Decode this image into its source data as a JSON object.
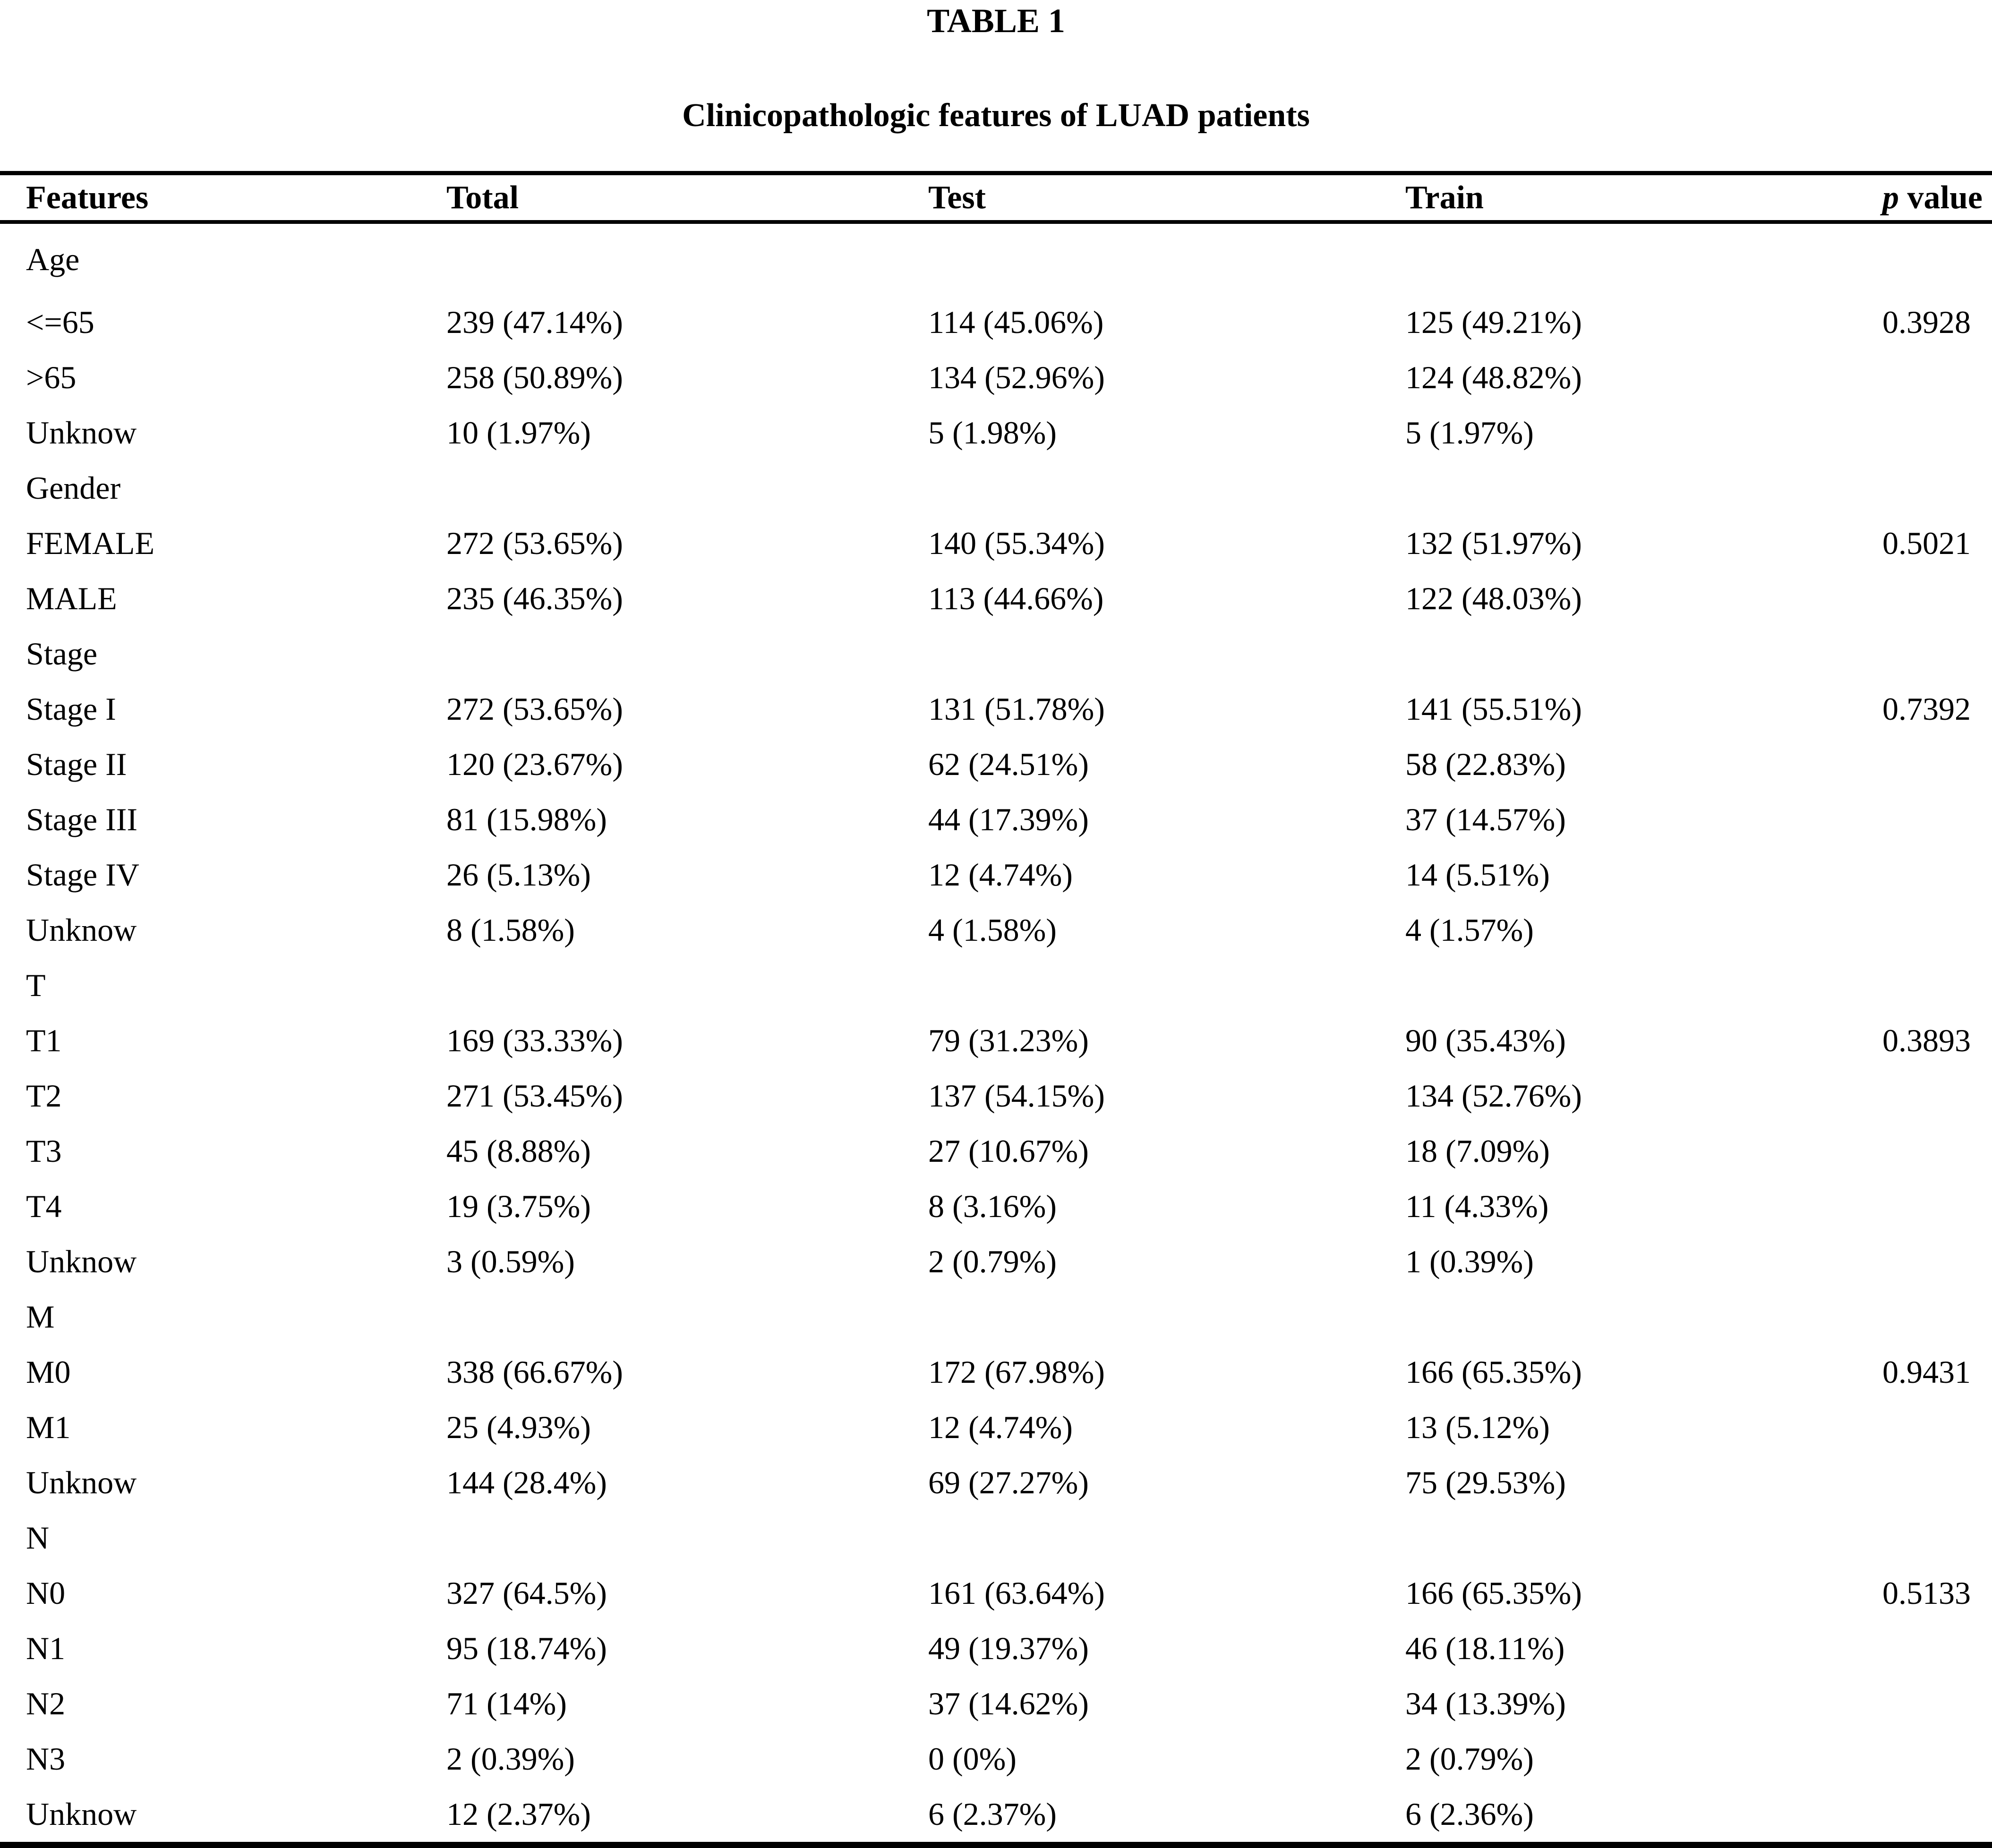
{
  "title": "TABLE 1",
  "caption": "Clinicopathologic features of LUAD patients",
  "table": {
    "headers": {
      "features": "Features",
      "total": "Total",
      "test": "Test",
      "train": "Train",
      "p_italic": "p",
      "p_rest": " value"
    },
    "rows": [
      {
        "feature": "Age",
        "total": "",
        "test": "",
        "train": "",
        "p": "",
        "group": true
      },
      {
        "feature": "<=65",
        "total": "239 (47.14%)",
        "test": "114 (45.06%)",
        "train": "125 (49.21%)",
        "p": "0.3928",
        "group": false
      },
      {
        "feature": ">65",
        "total": "258 (50.89%)",
        "test": "134 (52.96%)",
        "train": "124 (48.82%)",
        "p": "",
        "group": false
      },
      {
        "feature": "Unknow",
        "total": "10 (1.97%)",
        "test": "5 (1.98%)",
        "train": "5 (1.97%)",
        "p": "",
        "group": false
      },
      {
        "feature": "Gender",
        "total": "",
        "test": "",
        "train": "",
        "p": "",
        "group": true
      },
      {
        "feature": "FEMALE",
        "total": "272 (53.65%)",
        "test": "140 (55.34%)",
        "train": "132 (51.97%)",
        "p": "0.5021",
        "group": false
      },
      {
        "feature": "MALE",
        "total": "235 (46.35%)",
        "test": "113 (44.66%)",
        "train": "122 (48.03%)",
        "p": "",
        "group": false
      },
      {
        "feature": "Stage",
        "total": "",
        "test": "",
        "train": "",
        "p": "",
        "group": true
      },
      {
        "feature": "Stage I",
        "total": "272 (53.65%)",
        "test": "131 (51.78%)",
        "train": "141 (55.51%)",
        "p": "0.7392",
        "group": false
      },
      {
        "feature": "Stage II",
        "total": "120 (23.67%)",
        "test": "62 (24.51%)",
        "train": "58 (22.83%)",
        "p": "",
        "group": false
      },
      {
        "feature": "Stage III",
        "total": "81 (15.98%)",
        "test": "44 (17.39%)",
        "train": "37 (14.57%)",
        "p": "",
        "group": false
      },
      {
        "feature": "Stage IV",
        "total": "26 (5.13%)",
        "test": "12 (4.74%)",
        "train": "14 (5.51%)",
        "p": "",
        "group": false
      },
      {
        "feature": "Unknow",
        "total": "8 (1.58%)",
        "test": "4 (1.58%)",
        "train": "4 (1.57%)",
        "p": "",
        "group": false
      },
      {
        "feature": "T",
        "total": "",
        "test": "",
        "train": "",
        "p": "",
        "group": true
      },
      {
        "feature": "T1",
        "total": "169 (33.33%)",
        "test": "79 (31.23%)",
        "train": "90 (35.43%)",
        "p": "0.3893",
        "group": false
      },
      {
        "feature": "T2",
        "total": "271 (53.45%)",
        "test": "137 (54.15%)",
        "train": "134 (52.76%)",
        "p": "",
        "group": false
      },
      {
        "feature": "T3",
        "total": "45 (8.88%)",
        "test": "27 (10.67%)",
        "train": "18 (7.09%)",
        "p": "",
        "group": false
      },
      {
        "feature": "T4",
        "total": "19 (3.75%)",
        "test": "8 (3.16%)",
        "train": "11 (4.33%)",
        "p": "",
        "group": false
      },
      {
        "feature": "Unknow",
        "total": "3 (0.59%)",
        "test": "2 (0.79%)",
        "train": "1 (0.39%)",
        "p": "",
        "group": false
      },
      {
        "feature": "M",
        "total": "",
        "test": "",
        "train": "",
        "p": "",
        "group": true
      },
      {
        "feature": "M0",
        "total": "338 (66.67%)",
        "test": "172 (67.98%)",
        "train": "166 (65.35%)",
        "p": "0.9431",
        "group": false
      },
      {
        "feature": "M1",
        "total": "25 (4.93%)",
        "test": "12 (4.74%)",
        "train": "13 (5.12%)",
        "p": "",
        "group": false
      },
      {
        "feature": "Unknow",
        "total": "144 (28.4%)",
        "test": "69 (27.27%)",
        "train": "75 (29.53%)",
        "p": "",
        "group": false
      },
      {
        "feature": "N",
        "total": "",
        "test": "",
        "train": "",
        "p": "",
        "group": true
      },
      {
        "feature": "N0",
        "total": "327 (64.5%)",
        "test": "161 (63.64%)",
        "train": "166 (65.35%)",
        "p": "0.5133",
        "group": false
      },
      {
        "feature": "N1",
        "total": "95 (18.74%)",
        "test": "49 (19.37%)",
        "train": "46 (18.11%)",
        "p": "",
        "group": false
      },
      {
        "feature": "N2",
        "total": "71 (14%)",
        "test": "37 (14.62%)",
        "train": "34 (13.39%)",
        "p": "",
        "group": false
      },
      {
        "feature": "N3",
        "total": "2 (0.39%)",
        "test": "0 (0%)",
        "train": "2 (0.79%)",
        "p": "",
        "group": false
      },
      {
        "feature": "Unknow",
        "total": "12 (2.37%)",
        "test": "6 (2.37%)",
        "train": "6 (2.36%)",
        "p": "",
        "group": false
      }
    ]
  }
}
